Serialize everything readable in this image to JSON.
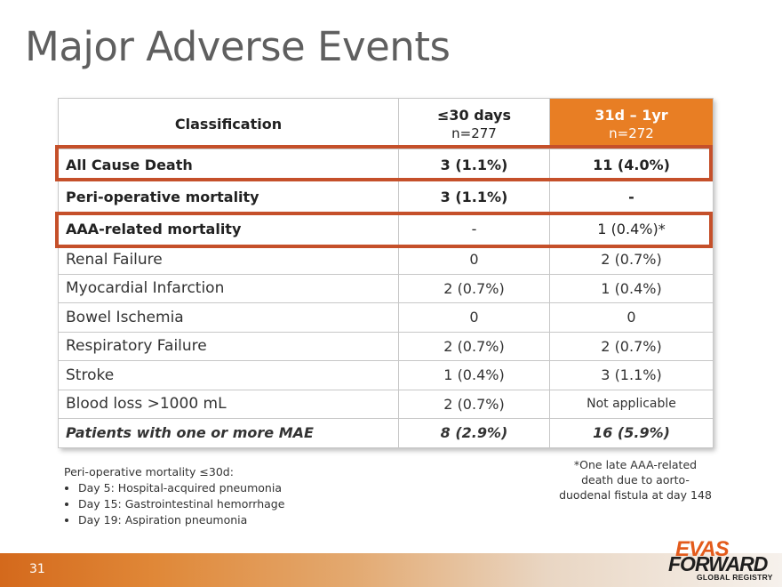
{
  "slide": {
    "title": "Major Adverse Events",
    "page_number": "31"
  },
  "table": {
    "headers": {
      "classification": "Classification",
      "col1_title": "≤30 days",
      "col1_n": "n=277",
      "col2_title": "31d – 1yr",
      "col2_n": "n=272"
    },
    "rows": [
      {
        "label": "All Cause Death",
        "d30": "3 (1.1%)",
        "d1yr": "11 (4.0%)"
      },
      {
        "label": "Peri-operative mortality",
        "d30": "3 (1.1%)",
        "d1yr": "-"
      },
      {
        "label": "AAA-related mortality",
        "d30": "-",
        "d1yr": "1 (0.4%)*"
      },
      {
        "label": "Renal Failure",
        "d30": "0",
        "d1yr": "2 (0.7%)"
      },
      {
        "label": "Myocardial Infarction",
        "d30": "2 (0.7%)",
        "d1yr": "1 (0.4%)"
      },
      {
        "label": "Bowel Ischemia",
        "d30": "0",
        "d1yr": "0"
      },
      {
        "label": "Respiratory Failure",
        "d30": "2 (0.7%)",
        "d1yr": "2 (0.7%)"
      },
      {
        "label": "Stroke",
        "d30": "1 (0.4%)",
        "d1yr": "3 (1.1%)"
      },
      {
        "label": "Blood loss >1000 mL",
        "d30": "2 (0.7%)",
        "d1yr": "Not applicable"
      },
      {
        "label": "Patients with one or more MAE",
        "d30": "8 (2.9%)",
        "d1yr": "16 (5.9%)"
      }
    ]
  },
  "notes": {
    "left_heading": "Peri-operative mortality ≤30d:",
    "left_items": [
      "Day 5: Hospital-acquired pneumonia",
      "Day 15: Gastrointestinal hemorrhage",
      "Day 19: Aspiration pneumonia"
    ],
    "right_line1": "*One late AAA-related",
    "right_line2": "death due to aorto-",
    "right_line3": "duodenal fistula at day 148"
  },
  "logo": {
    "line1": "EVAS",
    "line2": "FORWARD",
    "line3": "GLOBAL REGISTRY"
  },
  "colors": {
    "accent_orange": "#e87e24",
    "highlight_box": "#c5502a",
    "title_gray": "#5f5f5f"
  }
}
